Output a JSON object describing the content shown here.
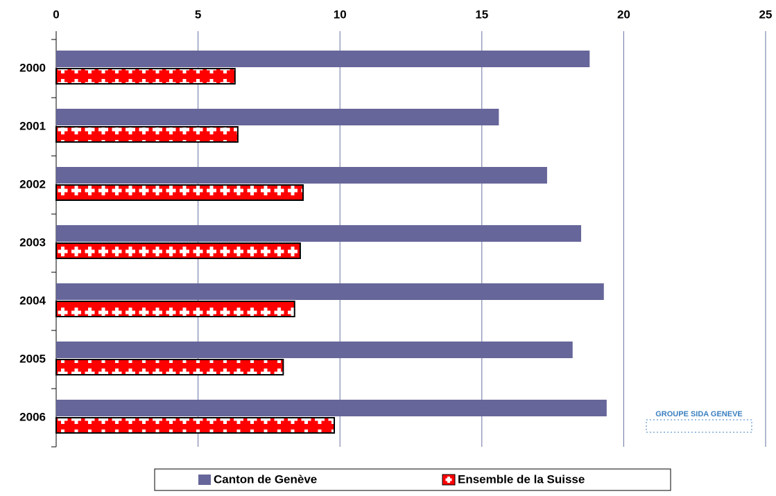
{
  "chart_data": {
    "type": "hbar",
    "categories": [
      "2000",
      "2001",
      "2002",
      "2003",
      "2004",
      "2005",
      "2006"
    ],
    "series": [
      {
        "name": "Canton de Genève",
        "color": "#66669a",
        "values": [
          18.8,
          15.6,
          17.3,
          18.5,
          19.3,
          18.2,
          19.4
        ]
      },
      {
        "name": "Ensemble de la Suisse",
        "color": "#ff0000",
        "values": [
          6.3,
          6.4,
          8.7,
          8.6,
          8.4,
          8.0,
          9.8
        ]
      }
    ],
    "xlim": [
      0,
      25
    ],
    "xticks": [
      0,
      5,
      10,
      15,
      20,
      25
    ],
    "grid": true,
    "annotation": "GROUPE SIDA GENEVE"
  }
}
